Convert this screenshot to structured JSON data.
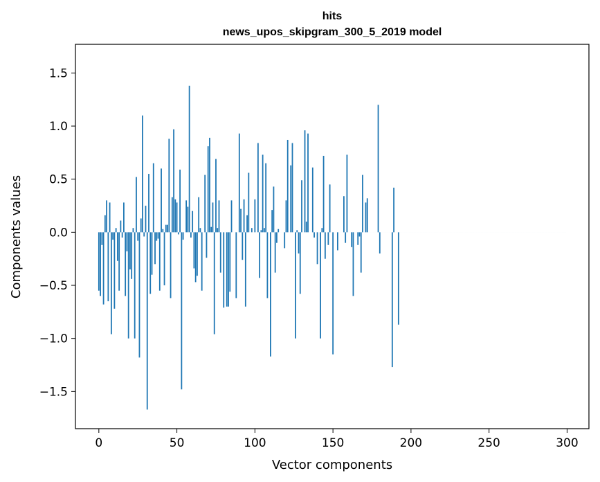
{
  "chart_data": {
    "type": "bar",
    "title": "hits",
    "subtitle": "news_upos_skipgram_300_5_2019 model",
    "xlabel": "Vector components",
    "ylabel": "Components values",
    "xlim": [
      -15,
      314
    ],
    "ylim": [
      -1.85,
      1.77
    ],
    "xticks": [
      0,
      50,
      100,
      150,
      200,
      250,
      300
    ],
    "yticks": [
      -1.5,
      -1.0,
      -0.5,
      0.0,
      0.5,
      1.0,
      1.5
    ],
    "ytick_labels": [
      "−1.5",
      "−1.0",
      "−0.5",
      "0.0",
      "0.5",
      "1.0",
      "1.5"
    ],
    "bar_color": "#1f77b4",
    "values": [
      -0.55,
      -0.6,
      -0.12,
      -0.68,
      0.16,
      0.3,
      -0.65,
      0.28,
      -0.96,
      -0.07,
      -0.72,
      0.04,
      -0.27,
      -0.55,
      0.11,
      -0.05,
      0.28,
      -0.6,
      -0.18,
      -1.0,
      -0.35,
      -0.44,
      0.04,
      -1.0,
      0.52,
      -0.08,
      -1.18,
      0.13,
      1.1,
      -0.04,
      0.25,
      -1.67,
      0.55,
      -0.58,
      -0.4,
      0.65,
      -0.3,
      -0.08,
      -0.06,
      -0.55,
      0.6,
      0.03,
      -0.5,
      0.07,
      0.07,
      0.88,
      -0.62,
      0.33,
      0.97,
      0.31,
      0.28,
      -0.02,
      0.59,
      -1.48,
      -0.07,
      0.0,
      0.3,
      0.24,
      1.38,
      -0.05,
      0.2,
      -0.34,
      -0.47,
      -0.41,
      0.33,
      0.04,
      -0.55,
      0.0,
      0.54,
      -0.24,
      0.81,
      0.89,
      0.05,
      0.28,
      -0.96,
      0.69,
      0.04,
      0.3,
      -0.38,
      0.0,
      -0.71,
      0.0,
      -0.7,
      -0.7,
      -0.56,
      0.3,
      0.0,
      0.0,
      -0.62,
      0.0,
      0.93,
      0.22,
      -0.26,
      0.31,
      -0.7,
      0.16,
      0.56,
      0.0,
      0.04,
      0.0,
      0.31,
      0.0,
      0.84,
      -0.43,
      0.02,
      0.73,
      0.04,
      0.65,
      -0.62,
      0.0,
      -1.17,
      0.21,
      0.43,
      -0.38,
      -0.1,
      0.03,
      0.0,
      0.0,
      0.0,
      -0.15,
      0.3,
      0.87,
      0.0,
      0.63,
      0.84,
      0.0,
      -1.0,
      0.02,
      -0.2,
      -0.58,
      0.49,
      0.0,
      0.96,
      0.1,
      0.93,
      0.0,
      0.0,
      0.61,
      -0.05,
      0.0,
      -0.3,
      0.0,
      -1.0,
      0.04,
      0.72,
      -0.25,
      0.0,
      -0.12,
      0.45,
      0.0,
      -1.15,
      0.0,
      0.0,
      -0.17,
      0.0,
      0.0,
      0.0,
      0.34,
      -0.1,
      0.73,
      0.0,
      0.0,
      -0.14,
      -0.6,
      0.0,
      0.0,
      -0.12,
      -0.04,
      -0.38,
      0.54,
      0.0,
      0.28,
      0.32,
      0.0,
      0.0,
      0.0,
      0.0,
      0.0,
      0.0,
      1.2,
      -0.2,
      0.0,
      0.0,
      0.0,
      0.0,
      0.0,
      0.0,
      0.0,
      -1.27,
      0.42,
      0.0,
      0.0,
      -0.87,
      0.0,
      0.0,
      0.0,
      0.0,
      0.0,
      0.0,
      0.0,
      0.0,
      0.0,
      0.0,
      0.0,
      0.0,
      0.0,
      0.0,
      0.0,
      0.0,
      0.0,
      0.0,
      0.0,
      0.0,
      0.0,
      0.0,
      0.0,
      0.0,
      0.0,
      0.0,
      0.0,
      0.0,
      0.0,
      0.0,
      0.0,
      0.0,
      0.0,
      0.0,
      0.0,
      0.0,
      0.0,
      0.0,
      0.0,
      0.0,
      0.0,
      0.0,
      0.0,
      0.0,
      0.0,
      0.0,
      0.0,
      0.0,
      0.0,
      0.0,
      0.0,
      0.0,
      0.0,
      0.0,
      0.0,
      0.0,
      0.0,
      0.0,
      0.0,
      0.0,
      0.0,
      0.0,
      0.0,
      0.0,
      0.0,
      0.0,
      0.0,
      0.0,
      0.0,
      0.0,
      0.0,
      0.0,
      0.0,
      0.0,
      0.0,
      0.0,
      0.0,
      0.0,
      0.0,
      0.0,
      0.0,
      0.0,
      0.0,
      0.0,
      0.0,
      0.0,
      0.0,
      0.0,
      0.0,
      0.0,
      0.0,
      0.0,
      0.0,
      0.0,
      0.0,
      0.0,
      0.0,
      0.0,
      0.0,
      0.0,
      0.0,
      0.0,
      0.0,
      0.0,
      0.0,
      0.0,
      0.0
    ]
  }
}
